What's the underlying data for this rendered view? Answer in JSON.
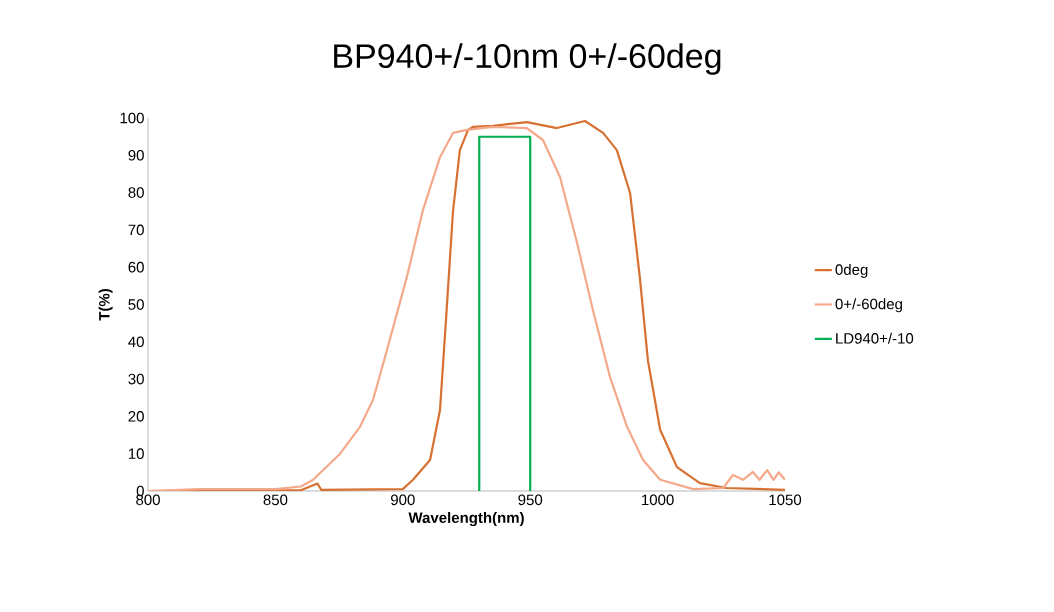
{
  "chart_data": {
    "type": "line",
    "title": "BP940+/-10nm 0+/-60deg",
    "xlabel": "Wavelength(nm)",
    "ylabel": "T(%)",
    "xlim": [
      800,
      1050
    ],
    "xticks": [
      800,
      850,
      900,
      950,
      1000,
      1050
    ],
    "ylim": [
      0,
      100
    ],
    "yticks": [
      0,
      10,
      20,
      30,
      40,
      50,
      60,
      70,
      80,
      90,
      100
    ],
    "grid": false,
    "legend": "right",
    "marker": "none",
    "line_style": "solid",
    "series": [
      {
        "name": "0deg",
        "color": "#d77131",
        "x": [
          800,
          860,
          866.5,
          868,
          900,
          904,
          910.7,
          914.6,
          917.2,
          919.7,
          922.4,
          925.6,
          927.5,
          935.4,
          948.7,
          960.5,
          971.5,
          978.6,
          984,
          989.2,
          993,
          996.2,
          1001,
          1007.6,
          1016.6,
          1027,
          1050
        ],
        "values": [
          0,
          0.2,
          2,
          0.3,
          0.5,
          3,
          8.3,
          21.7,
          48.5,
          75,
          91.4,
          96.8,
          97.6,
          97.9,
          98.9,
          97.3,
          99.2,
          96,
          91.4,
          79.9,
          57.4,
          35,
          16.4,
          6.4,
          2.1,
          0.8,
          0.3
        ]
      },
      {
        "name": "0+/-60deg",
        "color": "#f4a98a",
        "x": [
          800,
          820,
          850,
          860,
          864.8,
          875.4,
          883.2,
          888.3,
          893.8,
          901.6,
          907.9,
          914.6,
          919.7,
          925.2,
          935.4,
          948.7,
          955,
          961.7,
          968.4,
          974.6,
          981.3,
          988,
          994.3,
          1001,
          1014,
          1025.7,
          1029.6,
          1033.5,
          1037.4,
          1040,
          1043,
          1045.5,
          1047.5,
          1050
        ],
        "values": [
          0,
          0.5,
          0.5,
          1.2,
          3,
          10,
          17.2,
          24.4,
          37.8,
          57.4,
          75.3,
          89.5,
          96,
          96.8,
          97.6,
          97.3,
          94.1,
          84.2,
          66.5,
          48.5,
          30.6,
          17.2,
          8.3,
          3,
          0.5,
          0.8,
          4.3,
          3,
          5.1,
          3,
          5.6,
          3,
          5,
          3
        ]
      },
      {
        "name": "LD940+/-10",
        "color": "#00b050",
        "x": [
          930,
          930,
          950,
          950
        ],
        "values": [
          0,
          95,
          95,
          0
        ]
      }
    ]
  }
}
